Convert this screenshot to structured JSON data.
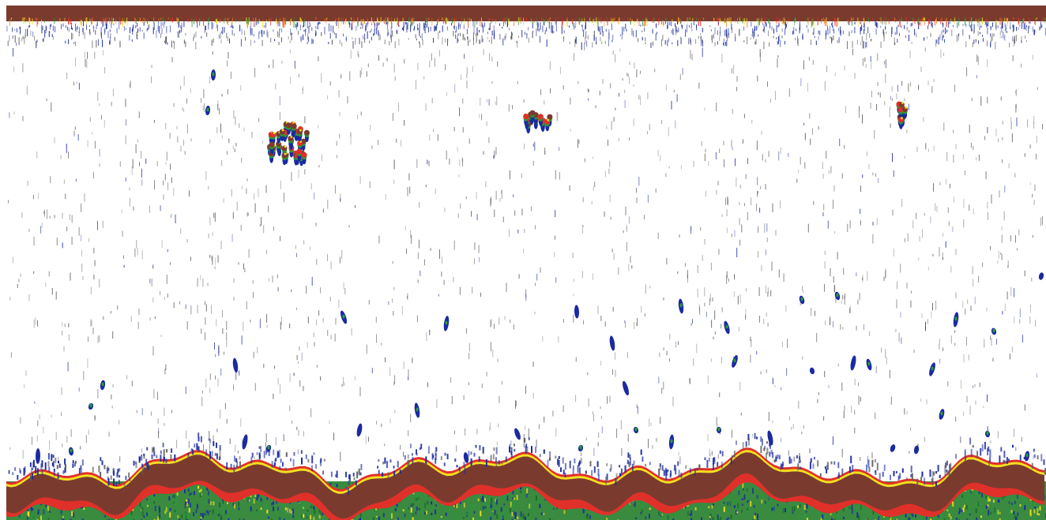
{
  "echogram": {
    "palette": {
      "background": "#ffffff",
      "strong": "#7a3b2e",
      "red": "#e0302a",
      "orange": "#f07a20",
      "yellow": "#f2e020",
      "green": "#2a9a3a",
      "blue": "#1a2aa0",
      "grey": "#5a5a5a"
    },
    "layers": [
      {
        "name": "surface-band",
        "type": "strong-echo"
      },
      {
        "name": "water-column",
        "type": "scattered-targets"
      },
      {
        "name": "seabed",
        "type": "bottom-echo"
      }
    ]
  }
}
